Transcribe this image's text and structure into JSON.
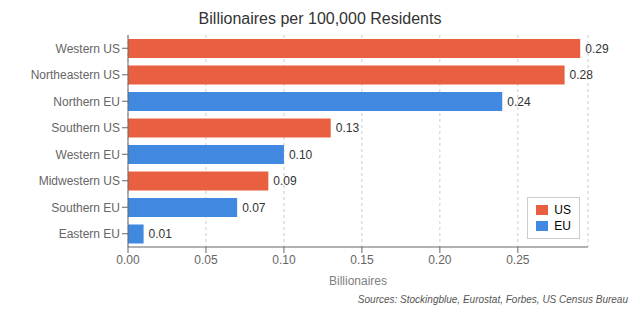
{
  "chart_data": {
    "type": "bar",
    "orientation": "horizontal",
    "title": "Billionaires per 100,000 Residents",
    "xlabel": "Billionaires",
    "annotations": [
      "Sources: Stockingblue, Eurostat, Forbes, US Census Bureau"
    ],
    "categories": [
      "Eastern EU",
      "Southern EU",
      "Midwestern US",
      "Western EU",
      "Southern US",
      "Northern EU",
      "Northeastern US",
      "Western US"
    ],
    "series": [
      {
        "name": "US",
        "color": "#E86040",
        "values": [
          null,
          null,
          0.09,
          null,
          0.13,
          null,
          0.28,
          0.29
        ],
        "value_labels": [
          null,
          null,
          "0.09",
          null,
          "0.13",
          null,
          "0.28",
          "0.29"
        ]
      },
      {
        "name": "EU",
        "color": "#4088E0",
        "values": [
          0.01,
          0.07,
          null,
          0.1,
          null,
          0.24,
          null,
          null
        ],
        "value_labels": [
          "0.01",
          "0.07",
          null,
          "0.10",
          null,
          "0.24",
          null,
          null
        ]
      }
    ],
    "xlim": [
      0,
      0.295
    ],
    "xticks": [
      {
        "value": 0,
        "label": "0.00"
      },
      0.05,
      {
        "value": 0.1,
        "label": "0.10"
      },
      0.15,
      {
        "value": 0.2,
        "label": "0.20"
      },
      0.25
    ],
    "grid": true,
    "legend": "lower right",
    "data_labels": true
  }
}
